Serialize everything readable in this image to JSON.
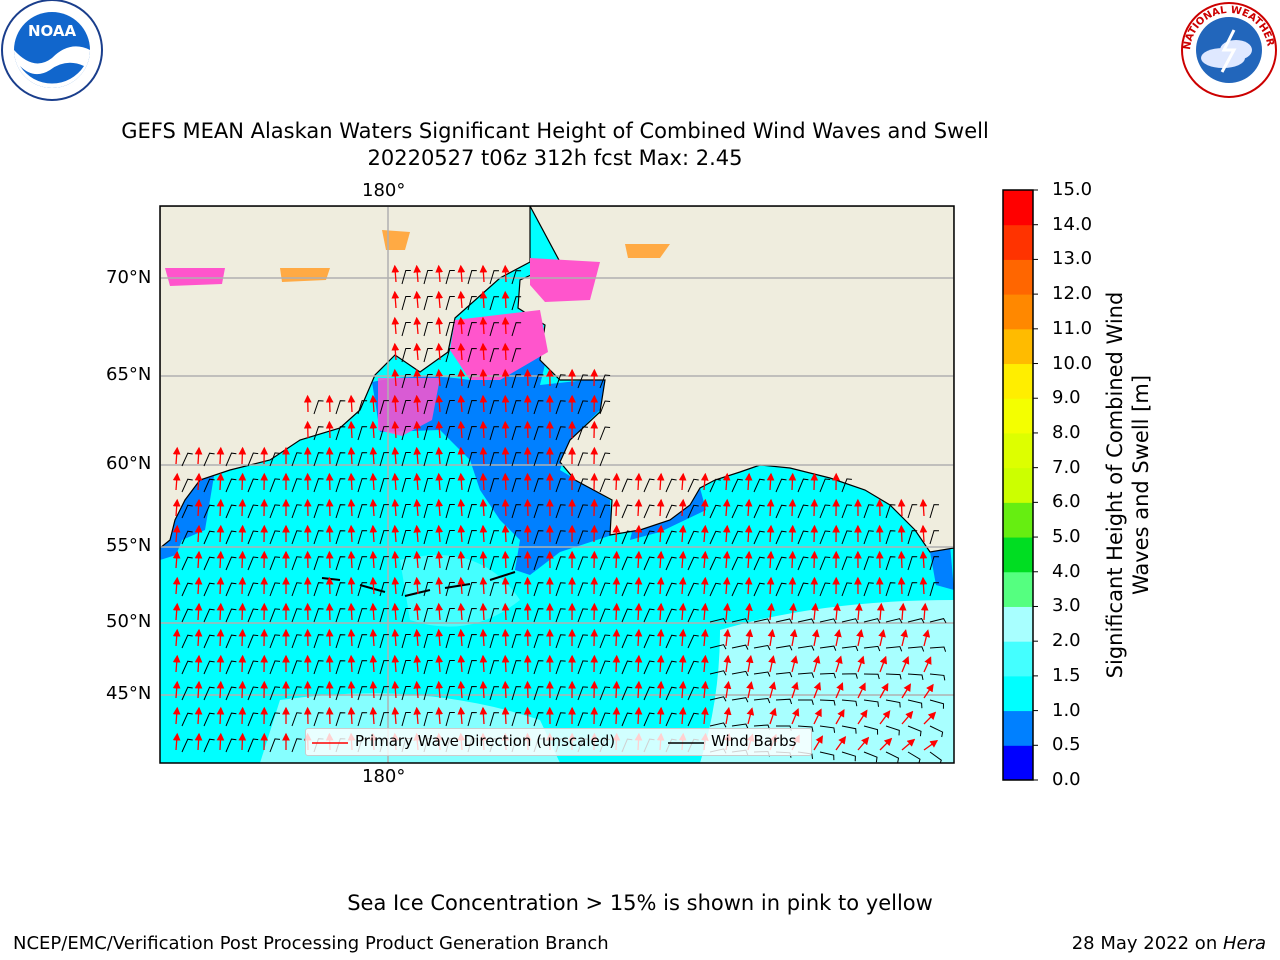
{
  "header": {
    "title_line1": "GEFS MEAN Alaskan Waters Significant Height of Combined Wind Waves and Swell",
    "title_line2": "20220527 t06z 312h fcst   Max: 2.45"
  },
  "logos": {
    "left": {
      "name": "noaa-logo",
      "text": "NOAA"
    },
    "right": {
      "name": "nws-logo",
      "text": "NATIONAL WEATHER SERVICE"
    }
  },
  "map": {
    "lon_label_top": "180°",
    "lon_label_bottom": "180°",
    "lat_labels": [
      "70°N",
      "65°N",
      "60°N",
      "55°N",
      "50°N",
      "45°N"
    ],
    "colors": {
      "land": "#efedde",
      "ocean_main": "#00ffff",
      "ocean_light": "#a8ffff",
      "ocean_dark": "#0080ff",
      "ice_pink": "#ff55cc",
      "ice_orange": "#ffaa44",
      "wave_arrow": "#ff0000",
      "wind_barb": "#000000",
      "grid": "#b0b0b0"
    }
  },
  "legend": {
    "wave": "Primary Wave Direction (unscaled)",
    "wind": "Wind Barbs"
  },
  "colorbar": {
    "label": "Significant Height of Combined Wind Waves and Swell [m]",
    "ticks": [
      "15.0",
      "14.0",
      "13.0",
      "12.0",
      "11.0",
      "10.0",
      "9.0",
      "8.0",
      "7.0",
      "6.0",
      "5.0",
      "4.0",
      "3.0",
      "2.0",
      "1.5",
      "1.0",
      "0.5",
      "0.0"
    ],
    "bins": [
      {
        "lo": 0.0,
        "hi": 0.5,
        "color": "#0000ff"
      },
      {
        "lo": 0.5,
        "hi": 1.0,
        "color": "#0080ff"
      },
      {
        "lo": 1.0,
        "hi": 1.5,
        "color": "#00ffff"
      },
      {
        "lo": 1.5,
        "hi": 2.0,
        "color": "#44ffff"
      },
      {
        "lo": 2.0,
        "hi": 3.0,
        "color": "#a8ffff"
      },
      {
        "lo": 3.0,
        "hi": 4.0,
        "color": "#55ff80"
      },
      {
        "lo": 4.0,
        "hi": 5.0,
        "color": "#00dd22"
      },
      {
        "lo": 5.0,
        "hi": 6.0,
        "color": "#66ee11"
      },
      {
        "lo": 6.0,
        "hi": 7.0,
        "color": "#ccff00"
      },
      {
        "lo": 7.0,
        "hi": 8.0,
        "color": "#ddff00"
      },
      {
        "lo": 8.0,
        "hi": 9.0,
        "color": "#f4ff00"
      },
      {
        "lo": 9.0,
        "hi": 10.0,
        "color": "#ffee00"
      },
      {
        "lo": 10.0,
        "hi": 11.0,
        "color": "#ffbb00"
      },
      {
        "lo": 11.0,
        "hi": 12.0,
        "color": "#ff8800"
      },
      {
        "lo": 12.0,
        "hi": 13.0,
        "color": "#ff6600"
      },
      {
        "lo": 13.0,
        "hi": 14.0,
        "color": "#ff3300"
      },
      {
        "lo": 14.0,
        "hi": 15.0,
        "color": "#ff0000"
      }
    ]
  },
  "notes": {
    "ice": "Sea Ice Concentration > 15% is shown in pink to yellow"
  },
  "footer": {
    "left": "NCEP/EMC/Verification Post Processing Product Generation Branch",
    "right_prefix": "28 May 2022 on ",
    "right_machine": "Hera"
  }
}
